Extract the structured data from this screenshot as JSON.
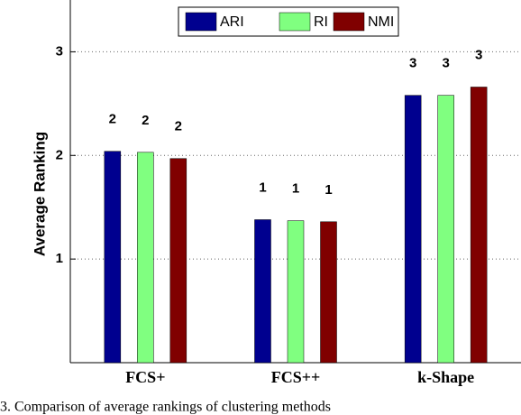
{
  "chart_data": {
    "type": "bar",
    "categories": [
      "FCS+",
      "FCS++",
      "k-Shape"
    ],
    "y_label": "Average Ranking",
    "series": [
      {
        "name": "ARI",
        "color": "#00008f",
        "values": [
          2.04,
          1.38,
          2.58
        ],
        "value_labels": [
          "2",
          "1",
          "3"
        ]
      },
      {
        "name": "RI",
        "color": "#80ff80",
        "values": [
          2.03,
          1.37,
          2.58
        ],
        "value_labels": [
          "2",
          "1",
          "3"
        ]
      },
      {
        "name": "NMI",
        "color": "#800000",
        "values": [
          1.97,
          1.36,
          2.66
        ],
        "value_labels": [
          "2",
          "1",
          "3"
        ]
      }
    ],
    "ylim": [
      0,
      3.5
    ],
    "yticks": [
      1,
      2,
      3
    ],
    "grid": true,
    "legend": "top",
    "caption": "3.   Comparison of average rankings of clustering methods"
  }
}
